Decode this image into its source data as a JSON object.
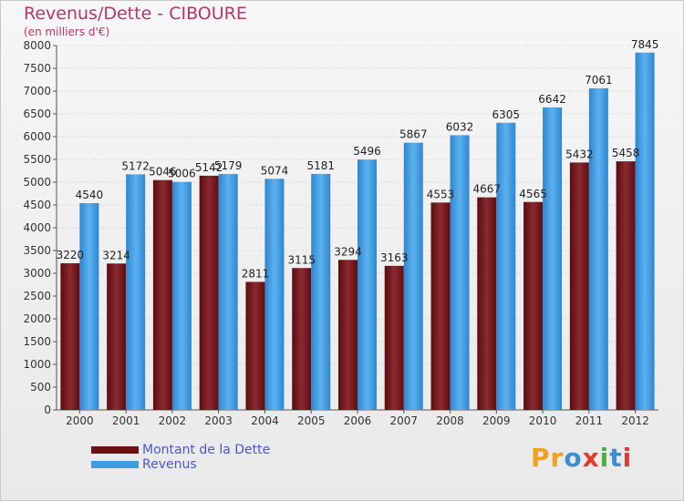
{
  "header": {
    "title": "Revenus/Dette - CIBOURE",
    "subtitle": "(en milliers d'€)"
  },
  "chart_data": {
    "type": "bar",
    "categories": [
      "2000",
      "2001",
      "2002",
      "2003",
      "2004",
      "2005",
      "2006",
      "2007",
      "2008",
      "2009",
      "2010",
      "2011",
      "2012"
    ],
    "series": [
      {
        "name": "Montant de la Dette",
        "color": "#7a1a1f",
        "values": [
          3220,
          3214,
          5046,
          5142,
          2811,
          3115,
          3294,
          3163,
          4553,
          4667,
          4565,
          5432,
          5458
        ]
      },
      {
        "name": "Revenus",
        "color": "#3f9be0",
        "values": [
          4540,
          5172,
          5006,
          5179,
          5074,
          5181,
          5496,
          5867,
          6032,
          6305,
          6642,
          7061,
          7845
        ]
      }
    ],
    "yticks": [
      "0",
      "500",
      "1000",
      "1500",
      "2000",
      "2500",
      "3000",
      "3500",
      "4000",
      "4500",
      "5000",
      "5500",
      "6000",
      "6500",
      "7000",
      "7500",
      "8000"
    ],
    "ylim": [
      0,
      8000
    ],
    "grid": true,
    "legend": "bottom-left"
  },
  "legend": {
    "items": [
      {
        "label": "Montant de la Dette",
        "color": "#7a1a1f"
      },
      {
        "label": "Revenus",
        "color": "#3f9be0"
      }
    ]
  },
  "logo": {
    "letters": [
      "P",
      "r",
      "o",
      "x",
      "i",
      "t",
      "i"
    ],
    "colors": [
      "#f2a01e",
      "#f2a01e",
      "#3a8fd0",
      "#e23a2d",
      "#4caf3e",
      "#3a8fd0",
      "#e23a2d"
    ]
  }
}
